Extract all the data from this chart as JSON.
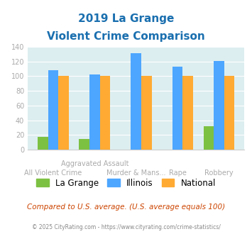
{
  "title_line1": "2019 La Grange",
  "title_line2": "Violent Crime Comparison",
  "lagrange": [
    18,
    15,
    0,
    0,
    32
  ],
  "illinois": [
    108,
    102,
    131,
    113,
    121
  ],
  "national": [
    100,
    100,
    100,
    100,
    100
  ],
  "bar_color_lagrange": "#7dc142",
  "bar_color_illinois": "#4da6ff",
  "bar_color_national": "#ffaa33",
  "bg_color": "#ddeef0",
  "ylim": [
    0,
    140
  ],
  "yticks": [
    0,
    20,
    40,
    60,
    80,
    100,
    120,
    140
  ],
  "legend_labels": [
    "La Grange",
    "Illinois",
    "National"
  ],
  "subtitle": "Compared to U.S. average. (U.S. average equals 100)",
  "footer": "© 2025 CityRating.com - https://www.cityrating.com/crime-statistics/",
  "title_color": "#1a6faf",
  "subtitle_color": "#cc4400",
  "footer_color": "#888888",
  "tick_label_color": "#aaaaaa",
  "x_top_labels": {
    "1": "Aggravated Assault"
  },
  "x_bot_labels": {
    "0": "All Violent Crime",
    "2": "Murder & Mans...",
    "3": "Rape",
    "4": "Robbery"
  }
}
